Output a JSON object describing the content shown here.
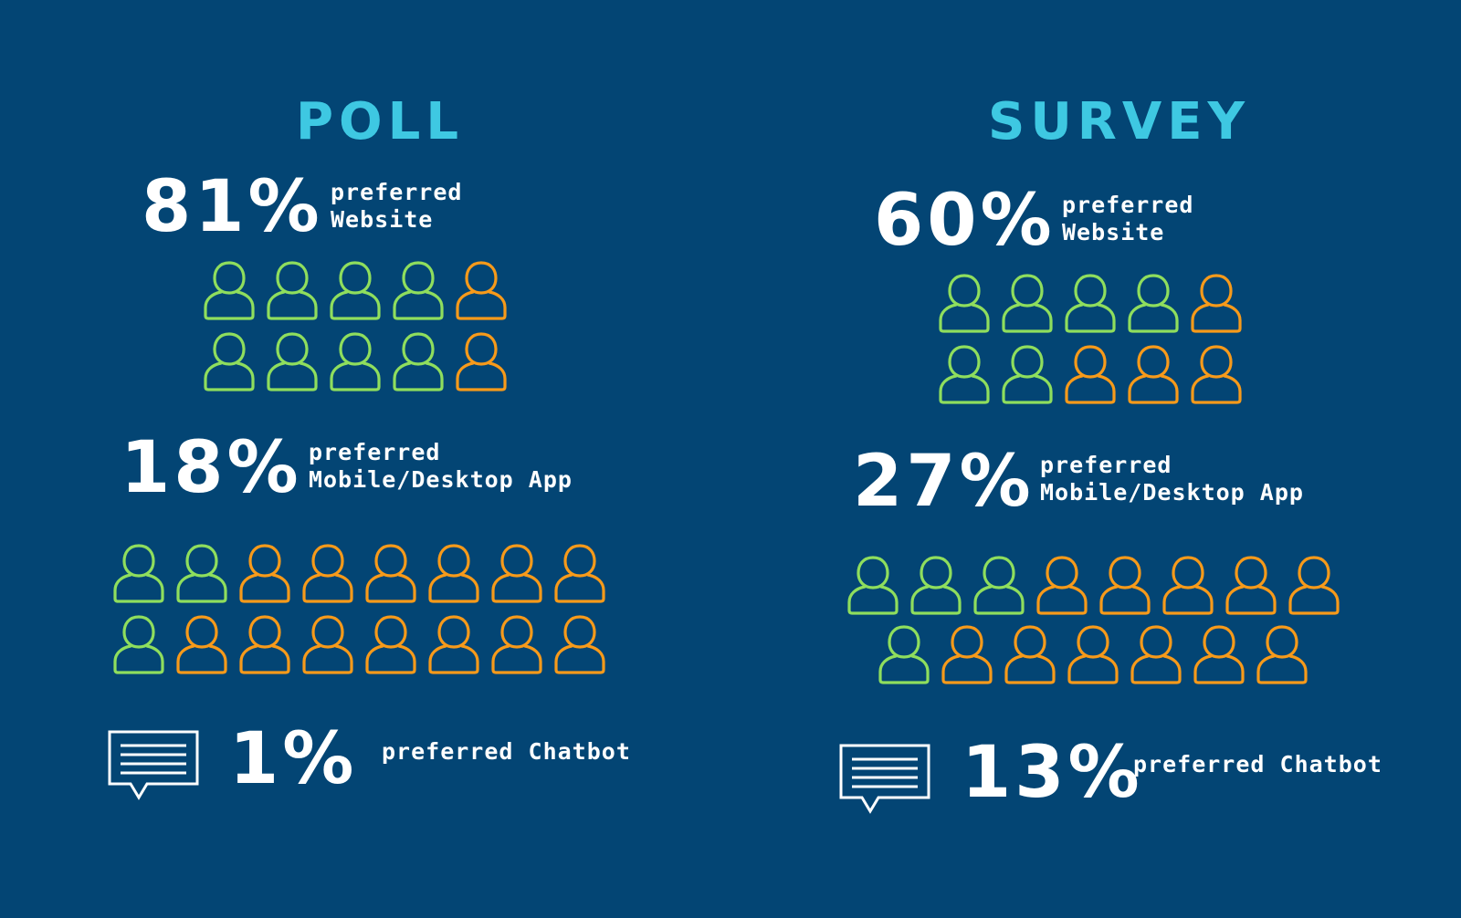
{
  "colors": {
    "background": "#034574",
    "title": "#3ec8e2",
    "icon_green": "#8fde5d",
    "icon_orange": "#f79a1a",
    "text": "#ffffff"
  },
  "icons": {
    "person": "person-outline-icon",
    "chat": "chat-bubble-icon"
  },
  "poll": {
    "title": "POLL",
    "website": {
      "percent": "81%",
      "line1": "preferred",
      "line2": "Website",
      "rows": [
        [
          "g",
          "g",
          "g",
          "g",
          "o"
        ],
        [
          "g",
          "g",
          "g",
          "g",
          "o"
        ]
      ]
    },
    "app": {
      "percent": "18%",
      "line1": "preferred",
      "line2": "Mobile/Desktop App",
      "rows": [
        [
          "g",
          "g",
          "o",
          "o",
          "o",
          "o",
          "o",
          "o"
        ],
        [
          "g",
          "o",
          "o",
          "o",
          "o",
          "o",
          "o",
          "o"
        ]
      ]
    },
    "chatbot": {
      "percent": "1%",
      "label": "preferred Chatbot"
    }
  },
  "survey": {
    "title": "SURVEY",
    "website": {
      "percent": "60%",
      "line1": "preferred",
      "line2": "Website",
      "rows": [
        [
          "g",
          "g",
          "g",
          "g",
          "o"
        ],
        [
          "g",
          "g",
          "o",
          "o",
          "o"
        ]
      ]
    },
    "app": {
      "percent": "27%",
      "line1": "preferred",
      "line2": "Mobile/Desktop App",
      "rows": [
        [
          "g",
          "g",
          "g",
          "o",
          "o",
          "o",
          "o",
          "o"
        ],
        [
          "g",
          "o",
          "o",
          "o",
          "o",
          "o",
          "o"
        ]
      ]
    },
    "chatbot": {
      "percent": "13%",
      "label": "preferred Chatbot"
    }
  }
}
